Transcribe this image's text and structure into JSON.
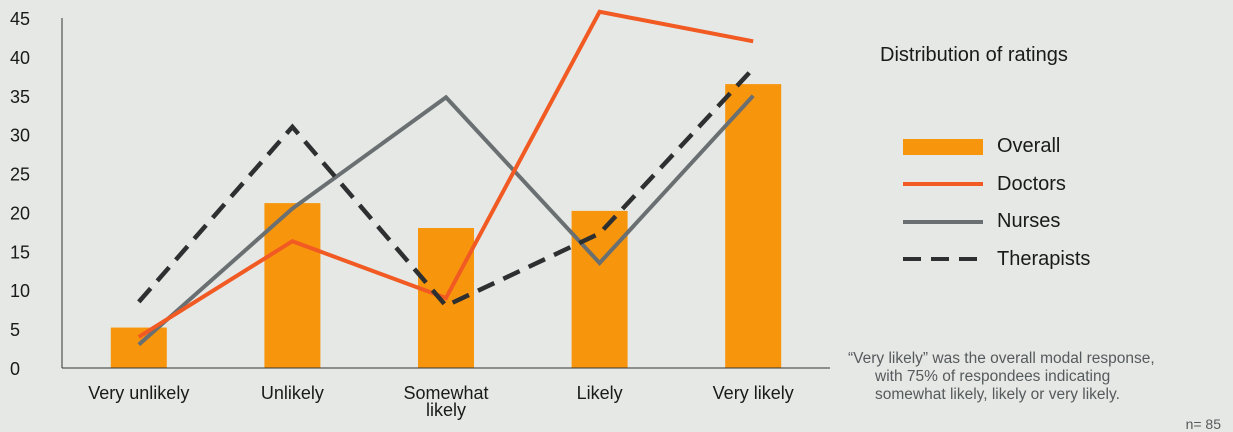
{
  "chart_data": {
    "type": "bar",
    "title": "Distribution of ratings",
    "categories": [
      "Very unlikely",
      "Unlikely",
      "Somewhat likely",
      "Likely",
      "Very likely"
    ],
    "category_lines": [
      [
        "Very unlikely"
      ],
      [
        "Unlikely"
      ],
      [
        "Somewhat",
        "likely"
      ],
      [
        "Likely"
      ],
      [
        "Very likely"
      ]
    ],
    "ylim": [
      0,
      45
    ],
    "yticks": [
      0,
      5,
      10,
      15,
      20,
      25,
      30,
      35,
      40,
      45
    ],
    "grid": false,
    "legend_position": "right",
    "series": [
      {
        "name": "Overall",
        "type": "bar",
        "color": "#f7950d",
        "values": [
          5.2,
          21.2,
          18.0,
          20.2,
          36.5
        ]
      },
      {
        "name": "Doctors",
        "type": "line",
        "color": "#f15a22",
        "values": [
          4.0,
          16.3,
          9.0,
          45.8,
          42.0
        ]
      },
      {
        "name": "Nurses",
        "type": "line",
        "color": "#6a7072",
        "values": [
          3.0,
          20.5,
          34.8,
          13.5,
          35.0
        ]
      },
      {
        "name": "Therapists",
        "type": "dashed-line",
        "color": "#2d2f30",
        "values": [
          8.5,
          31.0,
          8.0,
          17.3,
          38.5
        ]
      }
    ]
  },
  "note_lines": [
    "“Very likely” was the overall modal response,",
    "with 75% of respondees indicating",
    "somewhat likely, likely or very likely."
  ],
  "n_label": "n= 85"
}
